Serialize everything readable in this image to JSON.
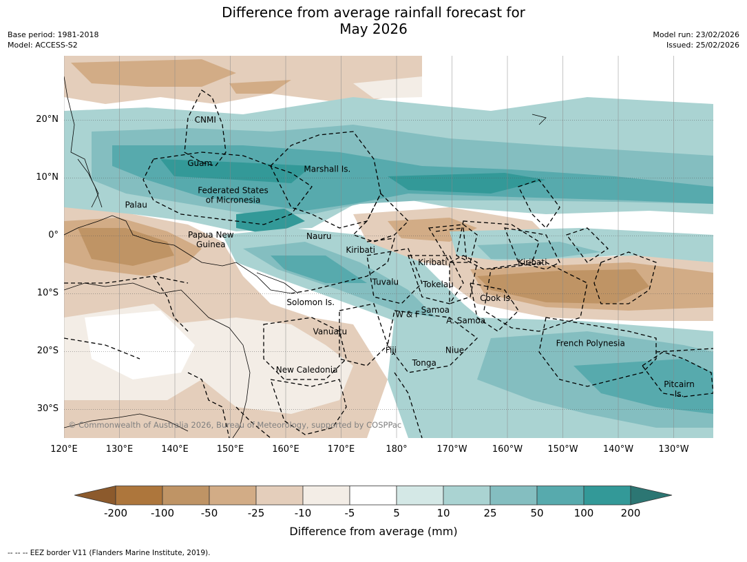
{
  "title": {
    "line1": "Difference from average rainfall forecast for",
    "line2": "May 2026"
  },
  "meta_left": {
    "base_period": "Base period: 1981-2018",
    "model": "Model: ACCESS-S2"
  },
  "meta_right": {
    "model_run": "Model run: 23/02/2026",
    "issued": "Issued: 25/02/2026"
  },
  "map": {
    "lat_ticks": [
      {
        "value": 20,
        "label": "20°N"
      },
      {
        "value": 10,
        "label": "10°N"
      },
      {
        "value": 0,
        "label": "0°"
      },
      {
        "value": -10,
        "label": "10°S"
      },
      {
        "value": -20,
        "label": "20°S"
      },
      {
        "value": -30,
        "label": "30°S"
      }
    ],
    "lon_ticks": [
      {
        "value": 120,
        "label": "120°E"
      },
      {
        "value": 130,
        "label": "130°E"
      },
      {
        "value": 140,
        "label": "140°E"
      },
      {
        "value": 150,
        "label": "150°E"
      },
      {
        "value": 160,
        "label": "160°E"
      },
      {
        "value": 170,
        "label": "170°E"
      },
      {
        "value": 180,
        "label": "180°"
      },
      {
        "value": 190,
        "label": "170°W"
      },
      {
        "value": 200,
        "label": "160°W"
      },
      {
        "value": 210,
        "label": "150°W"
      },
      {
        "value": 220,
        "label": "140°W"
      },
      {
        "value": 230,
        "label": "130°W"
      }
    ],
    "regions": [
      {
        "name": "CNMI",
        "lon": 145.5,
        "lat": 20.0
      },
      {
        "name": "Guam",
        "lon": 144.5,
        "lat": 12.5
      },
      {
        "name": "Marshall Is.",
        "lon": 167.5,
        "lat": 11.5
      },
      {
        "name": "Federated States\nof Micronesia",
        "lon": 150.5,
        "lat": 7.0
      },
      {
        "name": "Palau",
        "lon": 133.0,
        "lat": 5.3
      },
      {
        "name": "Papua New\nGuinea",
        "lon": 146.5,
        "lat": -0.7
      },
      {
        "name": "Nauru",
        "lon": 166.0,
        "lat": -0.1
      },
      {
        "name": "Kiribati",
        "lon": 173.5,
        "lat": -2.5
      },
      {
        "name": "Kiribati",
        "lon": 186.5,
        "lat": -4.6
      },
      {
        "name": "Kiribati",
        "lon": 204.5,
        "lat": -4.6
      },
      {
        "name": "Tuvalu",
        "lon": 178.0,
        "lat": -8.0
      },
      {
        "name": "Tokelau",
        "lon": 187.5,
        "lat": -8.4
      },
      {
        "name": "Cook Is.",
        "lon": 198.0,
        "lat": -10.8
      },
      {
        "name": "Solomon Is.",
        "lon": 164.5,
        "lat": -11.5
      },
      {
        "name": "W & F",
        "lon": 182.0,
        "lat": -13.6
      },
      {
        "name": "Samoa",
        "lon": 187.0,
        "lat": -12.8
      },
      {
        "name": "A. Samoa",
        "lon": 192.5,
        "lat": -14.7
      },
      {
        "name": "Vanuatu",
        "lon": 168.0,
        "lat": -16.6
      },
      {
        "name": "Fiji",
        "lon": 179.0,
        "lat": -19.8
      },
      {
        "name": "Niue",
        "lon": 190.5,
        "lat": -19.8
      },
      {
        "name": "French Polynesia",
        "lon": 215.0,
        "lat": -18.6
      },
      {
        "name": "Tonga",
        "lon": 185.0,
        "lat": -22.0
      },
      {
        "name": "New Caledonia",
        "lon": 163.8,
        "lat": -23.2
      },
      {
        "name": "Pitcairn\nIs.",
        "lon": 231.0,
        "lat": -26.5
      }
    ],
    "copyright": "© Commonwealth of Australia 2026, Bureau of Meteorology, supported by COSPPac"
  },
  "colorbar": {
    "title": "Difference from average (mm)",
    "tick_labels": [
      "-200",
      "-100",
      "-50",
      "-25",
      "-10",
      "-5",
      "5",
      "10",
      "25",
      "50",
      "100",
      "200"
    ],
    "colors": [
      "#8c5a2c",
      "#ad763c",
      "#bf9465",
      "#d2ac86",
      "#e4cebb",
      "#f3ede6",
      "#ffffff",
      "#d4e8e6",
      "#aad3d2",
      "#84bec0",
      "#57aaad",
      "#339998",
      "#2c7673"
    ]
  },
  "footer": "--  --  -- EEZ border V11 (Flanders Marine Institute, 2019)."
}
